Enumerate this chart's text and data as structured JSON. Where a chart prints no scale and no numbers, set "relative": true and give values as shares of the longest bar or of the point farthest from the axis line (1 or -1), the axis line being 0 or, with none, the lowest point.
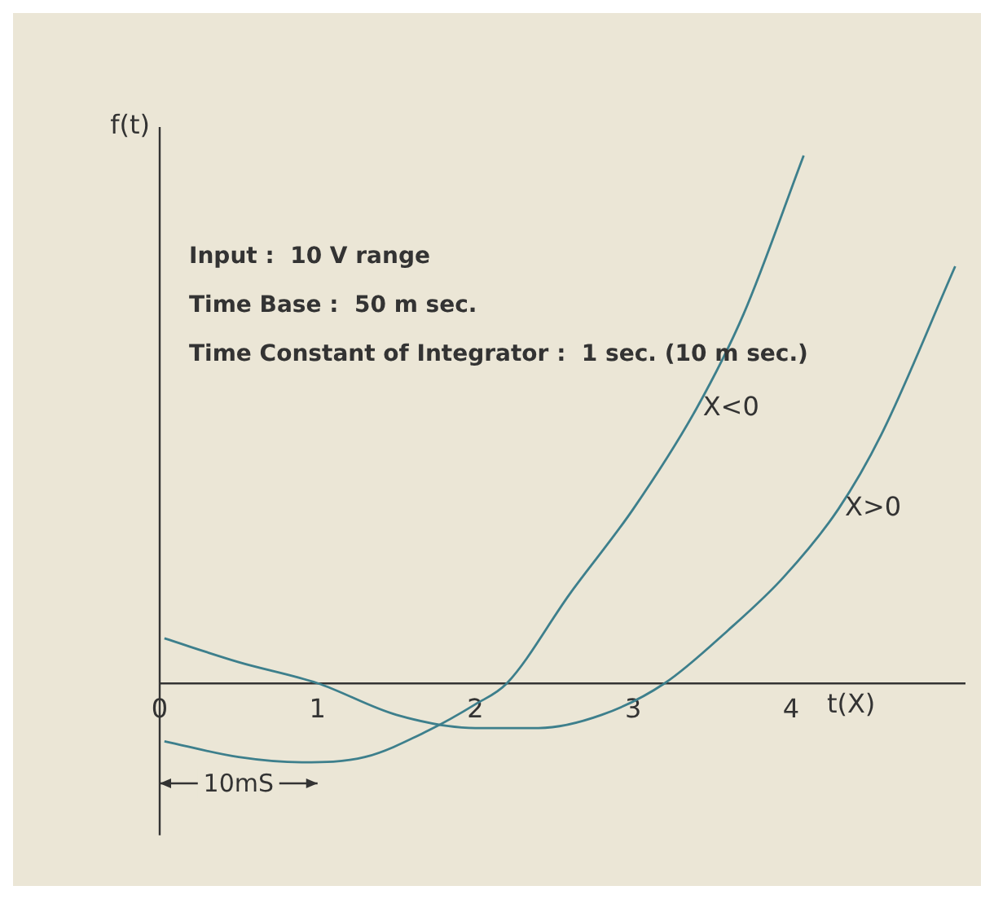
{
  "chart_data": {
    "type": "line",
    "relative": true,
    "xlabel": "t(X)",
    "ylabel": "f(t)",
    "xlim": [
      0,
      5.1
    ],
    "xticks": [
      0,
      1,
      2,
      3,
      4
    ],
    "series": [
      {
        "name": "X<0",
        "color": "#3d7f8c",
        "x": [
          0.03,
          0.5,
          0.9,
          1.3,
          1.7,
          2.0,
          2.2,
          2.6,
          3.0,
          3.4,
          3.7,
          4.08
        ],
        "values": [
          -0.11,
          -0.14,
          -0.15,
          -0.14,
          -0.09,
          -0.04,
          0,
          0.17,
          0.33,
          0.52,
          0.7,
          1.0
        ]
      },
      {
        "name": "X>0",
        "color": "#3d7f8c",
        "x": [
          0.03,
          0.5,
          1.0,
          1.5,
          2.0,
          2.4,
          2.8,
          3.2,
          3.6,
          3.95,
          4.3,
          4.57,
          5.04
        ],
        "values": [
          0.085,
          0.04,
          0,
          -0.06,
          -0.085,
          -0.085,
          -0.06,
          0,
          0.1,
          0.2,
          0.33,
          0.47,
          0.79
        ]
      }
    ],
    "annotations": [
      "Input :  10 V range",
      "Time Base :  50 m sec.",
      "Time Constant of Integrator :  1 sec. (10 m sec.)",
      "10mS"
    ],
    "marker": "none",
    "line_style": "solid",
    "grid": false,
    "legend": false
  }
}
